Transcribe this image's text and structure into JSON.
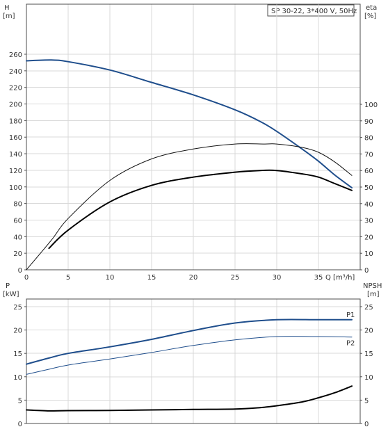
{
  "chart_data": [
    {
      "type": "line",
      "title": "SP 30-22, 3*400 V, 50Hz",
      "xlabel": "Q [m³/h]",
      "xlim": [
        0,
        40
      ],
      "x_ticks": [
        "0",
        "5",
        "10",
        "15",
        "20",
        "25",
        "30",
        "35"
      ],
      "grid": true,
      "left_axis": {
        "label_line1": "H",
        "label_line2": "[m]",
        "ylim": [
          0,
          280
        ],
        "ticks": [
          "0",
          "20",
          "40",
          "60",
          "80",
          "100",
          "120",
          "140",
          "160",
          "180",
          "200",
          "220",
          "240",
          "260"
        ]
      },
      "right_axis": {
        "label_line1": "eta",
        "label_line2": "[%]",
        "ylim": [
          0,
          100
        ],
        "ticks": [
          "0",
          "10",
          "20",
          "30",
          "40",
          "50",
          "60",
          "70",
          "80",
          "90",
          "100"
        ]
      },
      "series": [
        {
          "axis": "left",
          "color": "#1f4e8c",
          "width": 2,
          "x": [
            0,
            3,
            5,
            10,
            15,
            20,
            25,
            28,
            30,
            33,
            35,
            37,
            39
          ],
          "y": [
            252,
            253,
            251,
            241,
            226,
            211,
            193,
            179,
            167,
            146,
            131,
            114,
            99
          ]
        },
        {
          "axis": "right",
          "color": "#111111",
          "width": 1,
          "x": [
            0,
            3,
            5,
            10,
            15,
            20,
            25,
            28.5,
            30,
            33,
            35,
            37,
            39
          ],
          "y": [
            0,
            18,
            31,
            54,
            67,
            73,
            76,
            76,
            76,
            74,
            71,
            65,
            57
          ]
        },
        {
          "axis": "right",
          "color": "#000000",
          "width": 2,
          "x": [
            2.7,
            5,
            10,
            15,
            20,
            25,
            28,
            30,
            33,
            35,
            37,
            39
          ],
          "y": [
            13,
            24,
            41,
            51,
            56,
            59,
            60,
            60,
            58,
            56,
            52,
            48
          ]
        }
      ]
    },
    {
      "type": "line",
      "xlim": [
        0,
        40
      ],
      "grid": true,
      "left_axis": {
        "label_line1": "P",
        "label_line2": "[kW]",
        "ylim": [
          0,
          25
        ],
        "ticks": [
          "0",
          "5",
          "10",
          "15",
          "20",
          "25"
        ]
      },
      "right_axis": {
        "label_line1": "NPSH",
        "label_line2": "[m]",
        "ylim": [
          0,
          25
        ],
        "ticks": [
          "0",
          "5",
          "10",
          "15",
          "20",
          "25"
        ]
      },
      "series": [
        {
          "name": "P1",
          "axis": "left",
          "color": "#1f4e8c",
          "width": 2,
          "x": [
            0,
            2.7,
            5,
            10,
            15,
            20,
            25,
            30,
            35,
            39
          ],
          "y": [
            12.7,
            14.0,
            15.0,
            16.4,
            18.0,
            19.9,
            21.5,
            22.2,
            22.2,
            22.2
          ]
        },
        {
          "name": "P2",
          "axis": "left",
          "color": "#1f4e8c",
          "width": 1,
          "x": [
            0,
            2.7,
            5,
            10,
            15,
            20,
            25,
            30,
            35,
            39
          ],
          "y": [
            10.5,
            11.6,
            12.5,
            13.8,
            15.2,
            16.7,
            17.9,
            18.6,
            18.6,
            18.5
          ]
        },
        {
          "axis": "right",
          "color": "#000000",
          "width": 2,
          "x": [
            0,
            2.7,
            5,
            10,
            15,
            20,
            25,
            28,
            30,
            33,
            35,
            37,
            39
          ],
          "y": [
            2.9,
            2.7,
            2.75,
            2.8,
            2.9,
            3.0,
            3.1,
            3.4,
            3.8,
            4.6,
            5.5,
            6.6,
            8.0
          ]
        }
      ]
    }
  ]
}
